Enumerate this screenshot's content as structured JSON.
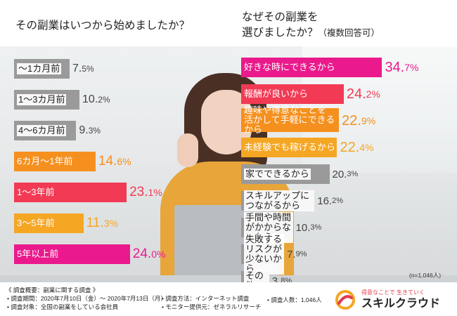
{
  "chart_data": [
    {
      "type": "bar",
      "title": "その副業はいつから始めましたか？",
      "categories": [
        "〜1カ月前",
        "1〜3カ月前",
        "4〜6カ月前",
        "6カ月〜1年前",
        "1〜3年前",
        "3〜5年前",
        "5年以上前"
      ],
      "values": [
        7.5,
        10.2,
        9.3,
        14.6,
        23.1,
        11.3,
        24.0
      ],
      "value_labels": [
        [
          "7.",
          "5",
          "%"
        ],
        [
          "10.",
          "2",
          "%"
        ],
        [
          "9.",
          "3",
          "%"
        ],
        [
          "14.",
          "6",
          "%"
        ],
        [
          "23.",
          "1",
          "%"
        ],
        [
          "11.",
          "3",
          "%"
        ],
        [
          "24.",
          "0",
          "%"
        ]
      ],
      "bar_colors": [
        "#9a9a9a",
        "#9a9a9a",
        "#9a9a9a",
        "#f5901e",
        "#f23a55",
        "#f5a623",
        "#ea1a8c"
      ],
      "label_colors": [
        "#222222",
        "#222222",
        "#222222",
        "#ffffff",
        "#ffffff",
        "#ffffff",
        "#ffffff"
      ],
      "value_colors": [
        "#444444",
        "#444444",
        "#444444",
        "#f5901e",
        "#f23a55",
        "#f5a623",
        "#ea1a8c"
      ]
    },
    {
      "type": "bar",
      "title": "なぜその副業を\n選びましたか？",
      "title_note": "（複数回答可）",
      "n_note": "(n=1,046人)",
      "categories": [
        "好きな時にできるから",
        "報酬が良いから",
        "趣味や得意なことを\n活かして手軽にできるから",
        "未経験でも稼げるから",
        "家でできるから",
        "スキルアップにつながるから",
        "手間や時間がかからないから",
        "失敗するリスクが少ないから",
        "その他"
      ],
      "values": [
        34.7,
        24.2,
        22.9,
        22.4,
        20.3,
        16.2,
        10.3,
        7.9,
        3.8
      ],
      "value_labels": [
        [
          "34.",
          "7",
          "%"
        ],
        [
          "24.",
          "2",
          "%"
        ],
        [
          "22.",
          "9",
          "%"
        ],
        [
          "22.",
          "4",
          "%"
        ],
        [
          "20.",
          "3",
          "%"
        ],
        [
          "16.",
          "2",
          "%"
        ],
        [
          "10.",
          "3",
          "%"
        ],
        [
          "7.",
          "9",
          "%"
        ],
        [
          "3.",
          "8",
          "%"
        ]
      ],
      "bar_colors": [
        "#ea1a8c",
        "#f23a55",
        "#f5901e",
        "#f5a623",
        "#9a9a9a",
        "#9a9a9a",
        "#9a9a9a",
        "#9a9a9a",
        "#9a9a9a"
      ],
      "label_colors": [
        "#ffffff",
        "#ffffff",
        "#ffffff",
        "#ffffff",
        "#222222",
        "#222222",
        "#222222",
        "#222222",
        "#222222"
      ],
      "value_colors": [
        "#ea1a8c",
        "#f23a55",
        "#f5901e",
        "#f5a623",
        "#444444",
        "#444444",
        "#444444",
        "#444444",
        "#444444"
      ]
    }
  ],
  "footer": {
    "title": "《 調査概要：副業に関する調査 》",
    "period": "• 調査期間：2020年7月10日（金）〜 2020年7月13日（月）",
    "target": "• 調査対象：全国の副業をしている会社員",
    "method": "• 調査方法：インターネット調査",
    "provider": "• モニター提供元：ゼネラルリサーチ",
    "count": "• 調査人数：1,046人"
  },
  "logo": {
    "tagline": "得意なことで 生きていく",
    "name": "スキルクラウド"
  }
}
